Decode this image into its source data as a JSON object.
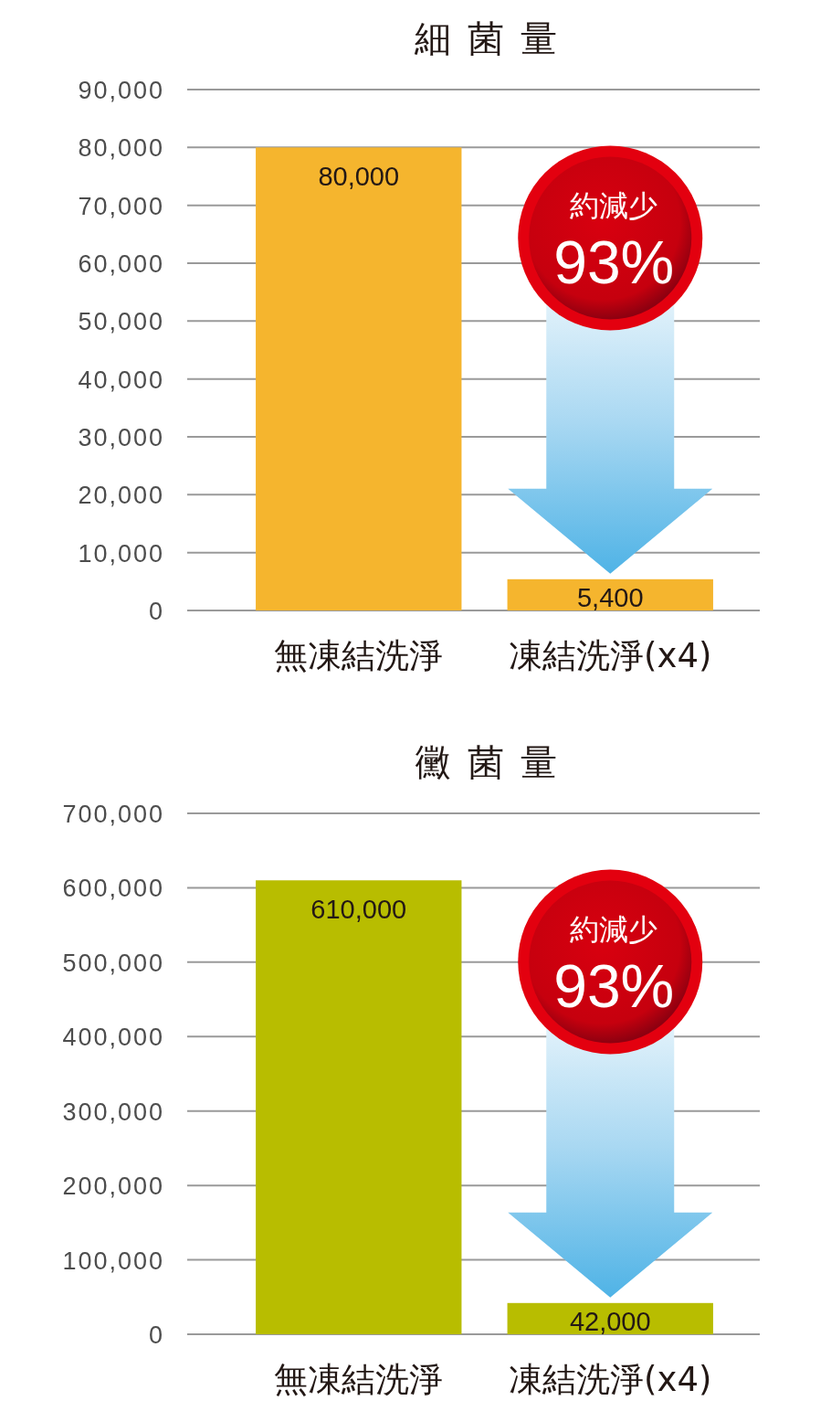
{
  "chart_data": [
    {
      "type": "bar",
      "title": "細菌量",
      "categories": [
        "無凍結洗淨",
        "凍結洗淨(x4)"
      ],
      "values": [
        80000,
        5400
      ],
      "value_labels": [
        "80,000",
        "5,400"
      ],
      "color": "#f5b52e",
      "ylim": [
        0,
        90000
      ],
      "yticks": [
        0,
        {
          "value": 10000,
          "label": "10,000"
        },
        {
          "value": 20000,
          "label": "20,000"
        },
        {
          "value": 30000,
          "label": "30,000"
        },
        {
          "value": 40000,
          "label": "40,000"
        },
        {
          "value": 50000,
          "label": "50,000"
        },
        {
          "value": 60000,
          "label": "60,000"
        },
        {
          "value": 70000,
          "label": "70,000"
        },
        {
          "value": 80000,
          "label": "80,000"
        },
        {
          "value": 90000,
          "label": "90,000"
        }
      ],
      "grid": "y",
      "annotations": [
        "約減少",
        "93%"
      ]
    },
    {
      "type": "bar",
      "title": "黴菌量",
      "categories": [
        "無凍結洗淨",
        "凍結洗淨(x4)"
      ],
      "values": [
        610000,
        42000
      ],
      "value_labels": [
        "610,000",
        "42,000"
      ],
      "color": "#b8bd00",
      "ylim": [
        0,
        700000
      ],
      "yticks": [
        0,
        {
          "value": 100000,
          "label": "100,000"
        },
        {
          "value": 200000,
          "label": "200,000"
        },
        {
          "value": 300000,
          "label": "300,000"
        },
        {
          "value": 400000,
          "label": "400,000"
        },
        {
          "value": 500000,
          "label": "500,000"
        },
        {
          "value": 600000,
          "label": "600,000"
        },
        {
          "value": 700000,
          "label": "700,000"
        }
      ],
      "grid": "y",
      "annotations": [
        "約減少",
        "93%"
      ]
    }
  ]
}
